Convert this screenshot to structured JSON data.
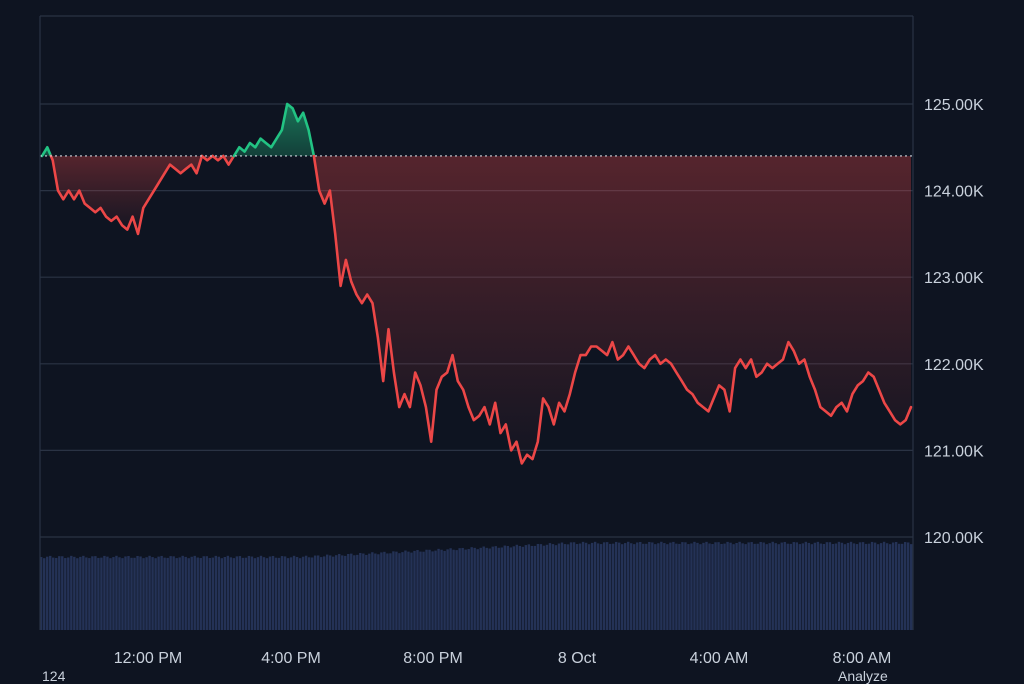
{
  "chart_data": {
    "type": "line",
    "baseline": 124.4,
    "ylim": [
      119.0,
      126.0
    ],
    "y_ticks": [
      125.0,
      124.0,
      123.0,
      122.0,
      121.0,
      120.0
    ],
    "y_tick_labels": [
      "125.00K",
      "124.00K",
      "123.00K",
      "122.00K",
      "121.00K",
      "120.00K"
    ],
    "x_tick_labels": [
      "12:00 PM",
      "4:00 PM",
      "8:00 PM",
      "8 Oct",
      "4:00 AM",
      "8:00 AM"
    ],
    "grid": true,
    "colors": {
      "up": "#22c383",
      "down": "#ec4747",
      "grid": "#2a3344",
      "volume": "#243256",
      "text": "#c9d1dc"
    },
    "series": [
      {
        "values": [
          124.4,
          124.5,
          124.35,
          124.0,
          123.9,
          124.0,
          123.9,
          124.0,
          123.85,
          123.8,
          123.75,
          123.8,
          123.7,
          123.65,
          123.7,
          123.6,
          123.55,
          123.7,
          123.5,
          123.8,
          123.9,
          124.0,
          124.1,
          124.2,
          124.3,
          124.25,
          124.2,
          124.25,
          124.3,
          124.2,
          124.4,
          124.35,
          124.4,
          124.35,
          124.4,
          124.3,
          124.4,
          124.5,
          124.45,
          124.55,
          124.5,
          124.6,
          124.55,
          124.5,
          124.6,
          124.7,
          125.0,
          124.95,
          124.8,
          124.9,
          124.7,
          124.4,
          124.0,
          123.85,
          124.0,
          123.5,
          122.9,
          123.2,
          122.95,
          122.8,
          122.7,
          122.8,
          122.7,
          122.3,
          121.8,
          122.4,
          121.9,
          121.5,
          121.65,
          121.5,
          121.9,
          121.75,
          121.5,
          121.1,
          121.7,
          121.85,
          121.9,
          122.1,
          121.8,
          121.7,
          121.5,
          121.35,
          121.4,
          121.5,
          121.3,
          121.55,
          121.2,
          121.3,
          121.0,
          121.1,
          120.85,
          120.95,
          120.9,
          121.1,
          121.6,
          121.5,
          121.3,
          121.55,
          121.45,
          121.65,
          121.9,
          122.1,
          122.1,
          122.2,
          122.2,
          122.15,
          122.1,
          122.25,
          122.05,
          122.1,
          122.2,
          122.1,
          122.0,
          121.95,
          122.05,
          122.1,
          122.0,
          122.05,
          122.0,
          121.9,
          121.8,
          121.7,
          121.65,
          121.55,
          121.5,
          121.45,
          121.6,
          121.75,
          121.7,
          121.45,
          121.95,
          122.05,
          121.95,
          122.05,
          121.85,
          121.9,
          122.0,
          121.95,
          122.0,
          122.05,
          122.25,
          122.15,
          122.0,
          122.05,
          121.85,
          121.7,
          121.5,
          121.45,
          121.4,
          121.5,
          121.55,
          121.45,
          121.65,
          121.75,
          121.8,
          121.9,
          121.85,
          121.7,
          121.55,
          121.45,
          121.35,
          121.3,
          121.35,
          121.5
        ]
      }
    ]
  },
  "footer": {
    "left_text": "124",
    "right_text": "Analyze"
  }
}
